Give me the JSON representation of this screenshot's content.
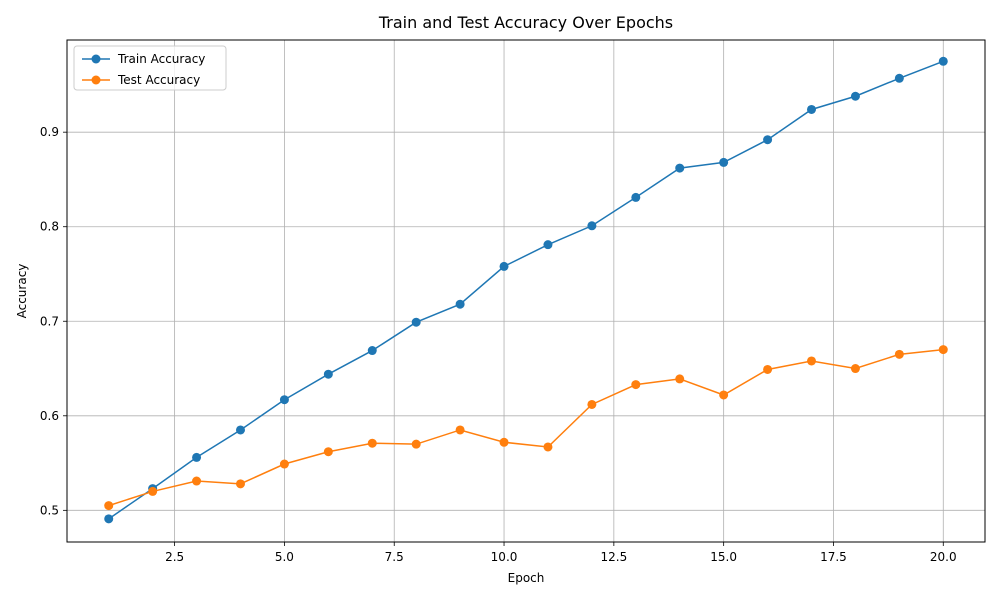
{
  "chart_data": {
    "type": "line",
    "title": "Train and Test Accuracy Over Epochs",
    "xlabel": "Epoch",
    "ylabel": "Accuracy",
    "xlim": [
      0.05,
      20.95
    ],
    "ylim": [
      0.4665,
      0.9975
    ],
    "x_ticks": [
      2.5,
      5.0,
      7.5,
      10.0,
      12.5,
      15.0,
      17.5,
      20.0
    ],
    "x_tick_labels": [
      "2.5",
      "5.0",
      "7.5",
      "10.0",
      "12.5",
      "15.0",
      "17.5",
      "20.0"
    ],
    "y_ticks": [
      0.5,
      0.6,
      0.7,
      0.8,
      0.9
    ],
    "y_tick_labels": [
      "0.5",
      "0.6",
      "0.7",
      "0.8",
      "0.9"
    ],
    "grid": true,
    "legend_position": "top-left",
    "x": [
      1,
      2,
      3,
      4,
      5,
      6,
      7,
      8,
      9,
      10,
      11,
      12,
      13,
      14,
      15,
      16,
      17,
      18,
      19,
      20
    ],
    "series": [
      {
        "name": "Train Accuracy",
        "color": "#1f77b4",
        "marker": "circle",
        "values": [
          0.491,
          0.523,
          0.556,
          0.585,
          0.617,
          0.644,
          0.669,
          0.699,
          0.718,
          0.758,
          0.781,
          0.801,
          0.831,
          0.862,
          0.868,
          0.892,
          0.924,
          0.938,
          0.957,
          0.975
        ]
      },
      {
        "name": "Test Accuracy",
        "color": "#ff7f0e",
        "marker": "circle",
        "values": [
          0.505,
          0.52,
          0.531,
          0.528,
          0.549,
          0.562,
          0.571,
          0.57,
          0.585,
          0.572,
          0.567,
          0.612,
          0.633,
          0.639,
          0.622,
          0.649,
          0.658,
          0.65,
          0.665,
          0.67
        ]
      }
    ]
  }
}
